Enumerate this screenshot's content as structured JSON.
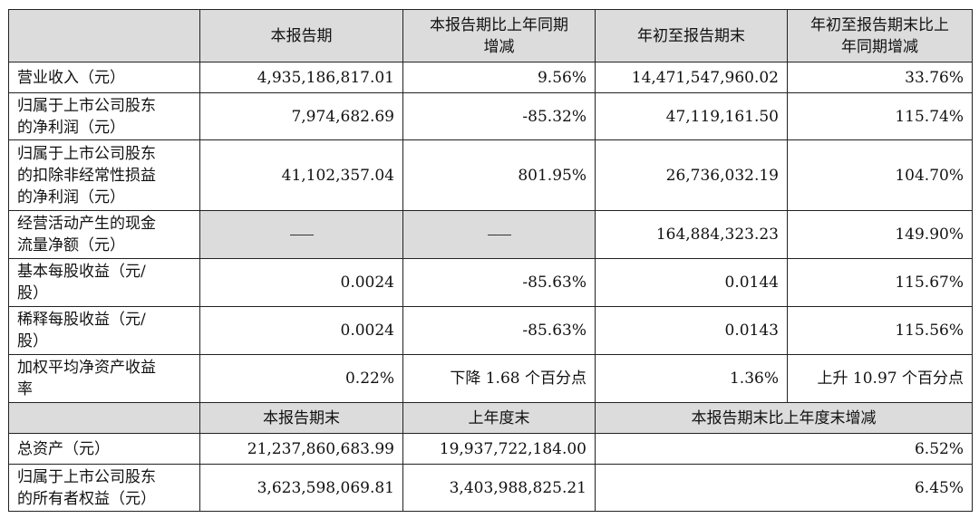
{
  "header": [
    "",
    "本报告期",
    "本报告期比上年同期增减",
    "年初至报告期末",
    "年初至报告期末比上年同期增减"
  ],
  "rows": [
    {
      "label": "营业收入（元）",
      "c1": "4,935,186,817.01",
      "c2": "9.56%",
      "c3": "14,471,547,960.02",
      "c4": "33.76%"
    },
    {
      "label": "归属于上市公司股东的净利润（元）",
      "c1": "7,974,682.69",
      "c2": "-85.32%",
      "c3": "47,119,161.50",
      "c4": "115.74%"
    },
    {
      "label": "归属于上市公司股东的扣除非经常性损益的净利润（元）",
      "c1": "41,102,357.04",
      "c2": "801.95%",
      "c3": "26,736,032.19",
      "c4": "104.70%"
    },
    {
      "label": "经营活动产生的现金流量净额（元）",
      "c1": "—",
      "c2": "—",
      "c3": "164,884,323.23",
      "c4": "149.90%"
    },
    {
      "label": "基本每股收益（元/股）",
      "c1": "0.0024",
      "c2": "-85.63%",
      "c3": "0.0144",
      "c4": "115.67%"
    },
    {
      "label": "稀释每股收益（元/股）",
      "c1": "0.0024",
      "c2": "-85.63%",
      "c3": "0.0143",
      "c4": "115.56%"
    },
    {
      "label": "加权平均净资产收益率",
      "c1": "0.22%",
      "c2": "下降 1.68 个百分点",
      "c3": "1.36%",
      "c4": "上升 10.97 个百分点"
    }
  ],
  "header2": [
    "",
    "本报告期末",
    "上年度末",
    "本报告期末比上年度末增减"
  ],
  "rows2": [
    {
      "label": "总资产（元）",
      "c1": "21,237,860,683.99",
      "c2": "19,937,722,184.00",
      "c3": "6.52%"
    },
    {
      "label": "归属于上市公司股东的所有者权益（元）",
      "c1": "3,623,598,069.81",
      "c2": "3,403,988,825.21",
      "c3": "6.45%"
    }
  ]
}
